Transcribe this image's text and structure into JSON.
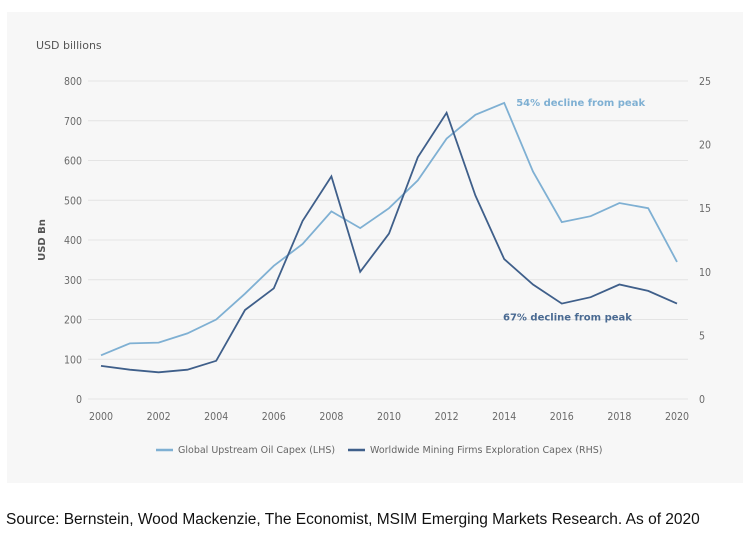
{
  "chart_data": {
    "type": "line",
    "title": "",
    "unit_label": "USD billions",
    "ylabel": "USD Bn",
    "xlabel": "",
    "x": [
      2000,
      2001,
      2002,
      2003,
      2004,
      2005,
      2006,
      2007,
      2008,
      2009,
      2010,
      2011,
      2012,
      2013,
      2014,
      2015,
      2016,
      2017,
      2018,
      2019,
      2020
    ],
    "x_ticks": [
      "2000",
      "2002",
      "2004",
      "2006",
      "2008",
      "2010",
      "2012",
      "2014",
      "2016",
      "2018",
      "2020"
    ],
    "xlim": [
      2000,
      2020
    ],
    "y_left": {
      "lim": [
        0,
        800
      ],
      "ticks": [
        "0",
        "100",
        "200",
        "300",
        "400",
        "500",
        "600",
        "700",
        "800"
      ]
    },
    "y_right": {
      "lim": [
        0,
        25
      ],
      "ticks": [
        "0",
        "5",
        "10",
        "15",
        "20",
        "25"
      ]
    },
    "grid": true,
    "legend_position": "bottom-center",
    "series": [
      {
        "name": "Global Upstream Oil Capex (LHS)",
        "axis": "left",
        "color": "#7fb0d3",
        "values": [
          110,
          140,
          142,
          165,
          200,
          265,
          335,
          390,
          472,
          430,
          480,
          550,
          655,
          715,
          745,
          572,
          445,
          460,
          493,
          480,
          345
        ]
      },
      {
        "name": "Worldwide Mining Firms Exploration Capex (RHS)",
        "axis": "right",
        "color": "#3f5f8a",
        "values": [
          2.6,
          2.3,
          2.1,
          2.3,
          3.0,
          7.0,
          8.7,
          14.0,
          17.5,
          10.0,
          13.0,
          19.0,
          22.5,
          16.0,
          11.0,
          9.0,
          7.5,
          8.0,
          9.0,
          8.5,
          7.5
        ]
      }
    ],
    "annotations": [
      {
        "text": "54% decline from peak",
        "series": 0,
        "x": 2014,
        "color": "#7fb0d3"
      },
      {
        "text": "67% decline from peak",
        "series": 1,
        "x": 2016,
        "color": "#4a6a92"
      }
    ]
  },
  "source": "Source: Bernstein, Wood Mackenzie, The Economist, MSIM Emerging Markets Research. As of 2020"
}
